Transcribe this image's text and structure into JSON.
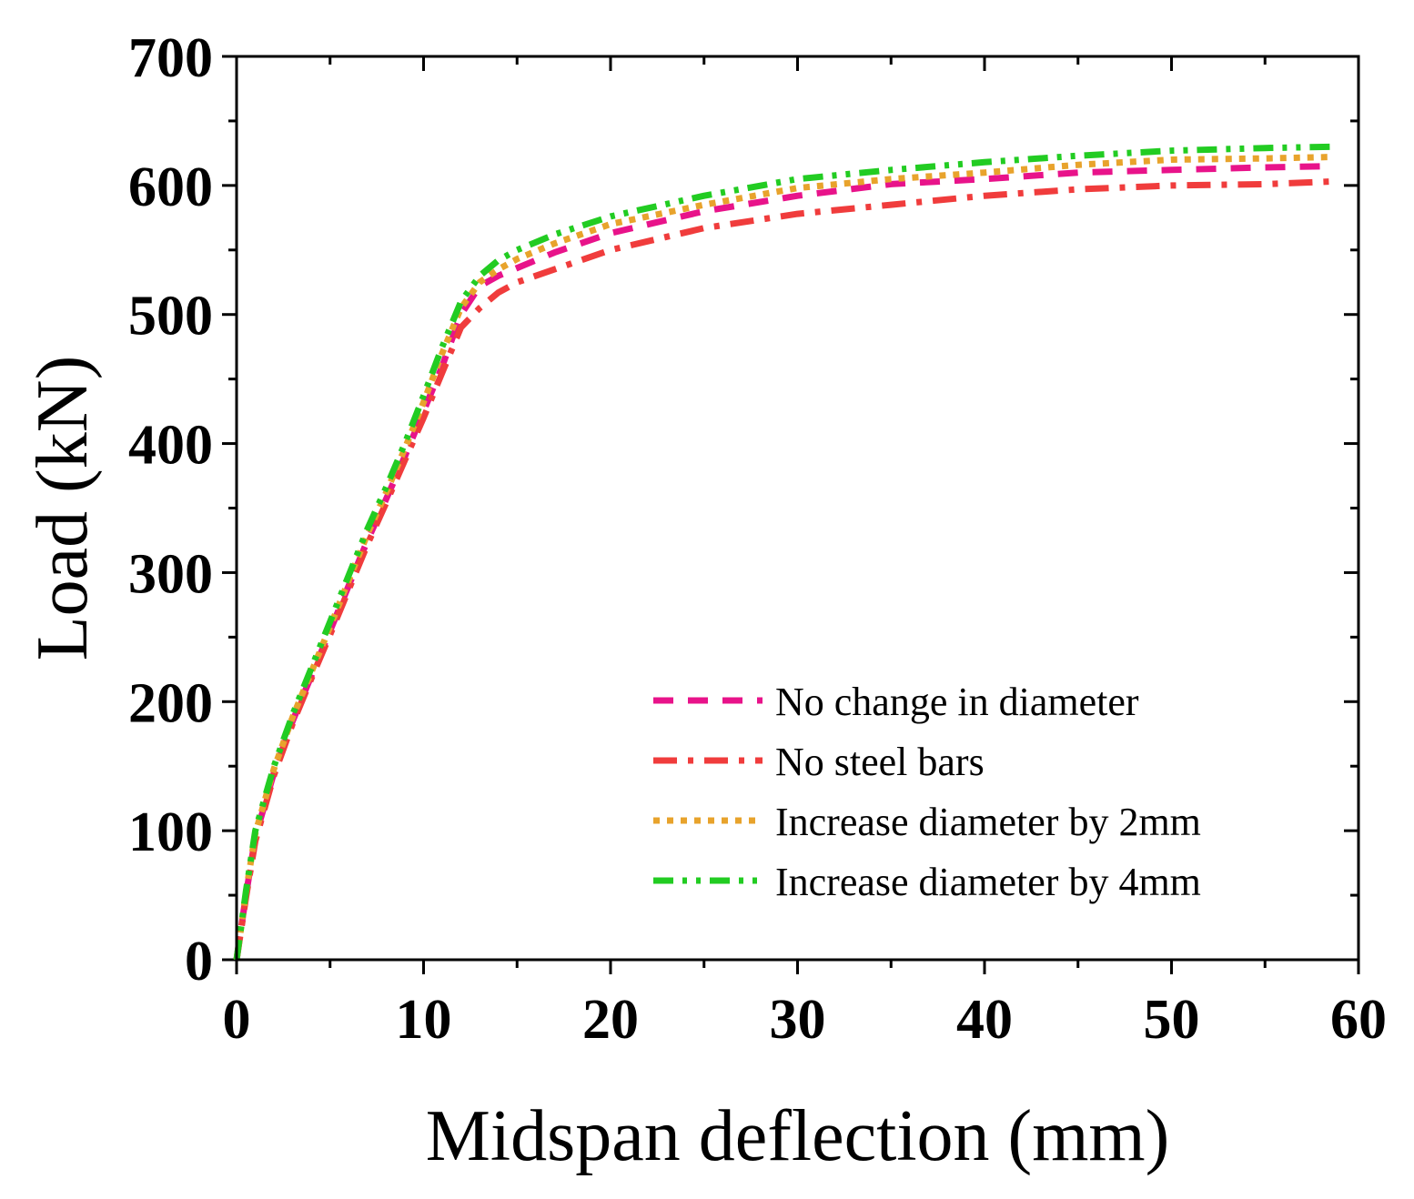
{
  "chart_data": {
    "type": "line",
    "title": "",
    "xlabel": "Midspan deflection (mm)",
    "ylabel": "Load (kN)",
    "xlim": [
      0,
      60
    ],
    "ylim": [
      0,
      700
    ],
    "xticks": [
      0,
      10,
      20,
      30,
      40,
      50,
      60
    ],
    "yticks": [
      0,
      100,
      200,
      300,
      400,
      500,
      600,
      700
    ],
    "grid": false,
    "legend_position": "bottom-right",
    "series": [
      {
        "name": "No change in diameter",
        "color": "#e8138a",
        "dash": "dash",
        "x": [
          0,
          0.5,
          1,
          2,
          3,
          4,
          5,
          6,
          7,
          8,
          9,
          10,
          11,
          12,
          13,
          14,
          15,
          17,
          20,
          25,
          30,
          35,
          40,
          45,
          50,
          55,
          58.5
        ],
        "y": [
          0,
          50,
          95,
          145,
          185,
          220,
          255,
          290,
          325,
          357,
          390,
          425,
          460,
          500,
          522,
          530,
          536,
          548,
          563,
          580,
          592,
          601,
          605,
          610,
          612,
          614,
          615
        ]
      },
      {
        "name": "No steel bars",
        "color": "#f03c3c",
        "dash": "dashdot",
        "x": [
          0,
          0.5,
          1,
          2,
          3,
          4,
          5,
          6,
          7,
          8,
          9,
          10,
          11,
          12,
          13,
          14,
          15,
          17,
          20,
          25,
          30,
          35,
          40,
          45,
          50,
          55,
          58.5
        ],
        "y": [
          0,
          48,
          92,
          143,
          183,
          218,
          252,
          287,
          322,
          354,
          387,
          420,
          455,
          490,
          505,
          517,
          525,
          535,
          550,
          567,
          578,
          585,
          592,
          597,
          600,
          601,
          603
        ]
      },
      {
        "name": "Increase diameter by 2mm",
        "color": "#e8a32c",
        "dash": "dot",
        "x": [
          0,
          0.5,
          1,
          2,
          3,
          4,
          5,
          6,
          7,
          8,
          9,
          10,
          11,
          12,
          13,
          14,
          15,
          17,
          20,
          25,
          30,
          35,
          40,
          45,
          50,
          55,
          58.5
        ],
        "y": [
          0,
          52,
          98,
          148,
          188,
          223,
          258,
          294,
          330,
          362,
          396,
          432,
          470,
          505,
          525,
          535,
          543,
          555,
          570,
          585,
          598,
          605,
          610,
          616,
          620,
          621,
          622
        ]
      },
      {
        "name": "Increase diameter by 4mm",
        "color": "#22cc22",
        "dash": "dashdotdot",
        "x": [
          0,
          0.5,
          1,
          2,
          3,
          4,
          5,
          6,
          7,
          8,
          9,
          10,
          11,
          12,
          13,
          14,
          15,
          17,
          20,
          25,
          30,
          35,
          40,
          45,
          50,
          55,
          58.5
        ],
        "y": [
          0,
          53,
          100,
          150,
          190,
          226,
          262,
          298,
          334,
          366,
          400,
          437,
          475,
          510,
          530,
          542,
          550,
          562,
          576,
          592,
          605,
          612,
          618,
          623,
          627,
          629,
          630
        ]
      }
    ]
  }
}
